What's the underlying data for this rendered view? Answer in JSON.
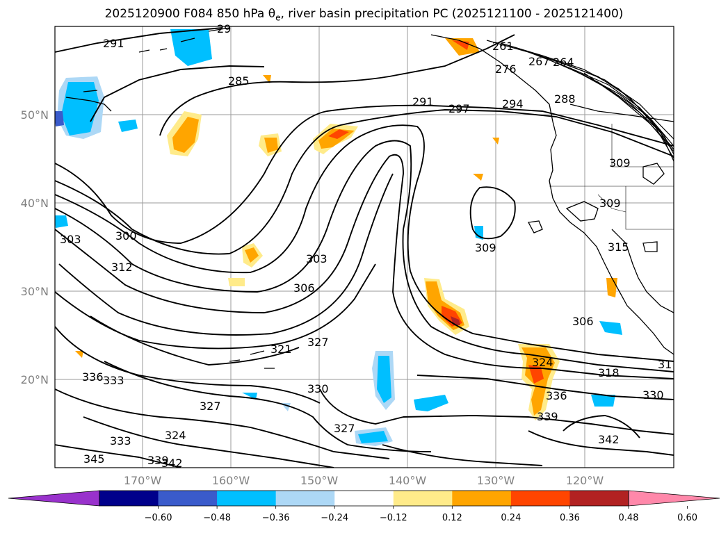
{
  "title": {
    "prefix": "2025120900 F084 850 hPa θ",
    "sub": "e",
    "suffix": ", river basin precipitation PC (2025121100 - 2025121400)"
  },
  "map": {
    "lon_labels": [
      "170°W",
      "160°W",
      "150°W",
      "140°W",
      "130°W",
      "120°W"
    ],
    "lat_labels": [
      "50°N",
      "40°N",
      "30°N",
      "20°N"
    ],
    "contour_labels": [
      "291",
      "29",
      "285",
      "261",
      "264",
      "267",
      "276",
      "288",
      "291",
      "297",
      "294",
      "309",
      "309",
      "309",
      "315",
      "300",
      "303",
      "303",
      "312",
      "306",
      "306",
      "321",
      "327",
      "318",
      "31",
      "324",
      "336",
      "333",
      "330",
      "330",
      "327",
      "336",
      "339",
      "327",
      "324",
      "333",
      "342",
      "345",
      "339",
      "342"
    ]
  },
  "colorbar": {
    "colors": [
      "#9932CC",
      "#00008B",
      "#3A5BCB",
      "#00BFFF",
      "#ADD8F6",
      "#FFFFFF",
      "#FFEB8A",
      "#FFA500",
      "#FF4500",
      "#B22222",
      "#FF88AA"
    ],
    "tick_labels": [
      "−0.60",
      "−0.48",
      "−0.36",
      "−0.24",
      "−0.12",
      "0.12",
      "0.24",
      "0.36",
      "0.48",
      "0.60"
    ],
    "values": [
      -0.6,
      -0.48,
      -0.36,
      -0.24,
      -0.12,
      0.12,
      0.24,
      0.36,
      0.48,
      0.6
    ]
  }
}
